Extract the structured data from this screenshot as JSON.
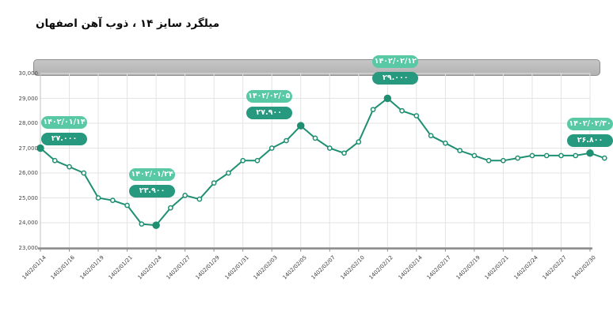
{
  "title": "میلگرد سایز ۱۴ ، ذوب آهن اصفهان",
  "colors": {
    "line": "#1f8f72",
    "marker_fill": "#ffffff",
    "badge_date_bg": "#58c9a4",
    "badge_price_bg": "#27997f",
    "grid": "#e3e3e3",
    "axis": "#8a8a8a",
    "y_axis_line": "#c0c0c0",
    "scrollbar": "#b8b8b8",
    "title_color": "#0b0b0b"
  },
  "chart_data": {
    "type": "line",
    "title": "میلگرد سایز ۱۴ ، ذوب آهن اصفهان",
    "ylim": [
      23000,
      30000
    ],
    "grid": true,
    "y_tick_labels": [
      "30,000",
      "29,000",
      "28,000",
      "27,000",
      "26,000",
      "25,000",
      "24,000",
      "23,000"
    ],
    "y_tick_values": [
      30000,
      29000,
      28000,
      27000,
      26000,
      25000,
      24000,
      23000
    ],
    "x_tick_labels": [
      "1402/01/14",
      "1402/01/16",
      "1402/01/19",
      "1402/01/21",
      "1402/01/24",
      "1402/01/27",
      "1402/01/29",
      "1402/01/31",
      "1402/02/03",
      "1402/02/05",
      "1402/02/07",
      "1402/02/10",
      "1402/02/12",
      "1402/02/14",
      "1402/02/17",
      "1402/02/19",
      "1402/02/21",
      "1402/02/24",
      "1402/02/27",
      "1402/02/30"
    ],
    "tick_every_n_points": 2,
    "values": [
      27000,
      26500,
      26250,
      26000,
      25000,
      24900,
      24700,
      23950,
      23900,
      24600,
      25100,
      24950,
      25600,
      26000,
      26500,
      26500,
      27000,
      27300,
      27900,
      27400,
      27000,
      26800,
      27250,
      28550,
      29000,
      28500,
      28300,
      27500,
      27200,
      26900,
      26700,
      26500,
      26500,
      26600,
      26700,
      26700,
      26700,
      26700,
      26800,
      26600
    ],
    "highlighted_point_indices": [
      0,
      8,
      18,
      24,
      38
    ],
    "annotations": [
      {
        "point_index": 0,
        "date_label": "۱۴۰۲/۰۱/۱۴",
        "price_label": "۲۷.۰۰۰",
        "value": 27000
      },
      {
        "point_index": 8,
        "date_label": "۱۴۰۲/۰۱/۲۴",
        "price_label": "۲۳.۹۰۰",
        "value": 23900
      },
      {
        "point_index": 18,
        "date_label": "۱۴۰۲/۰۲/۰۵",
        "price_label": "۲۷.۹۰۰",
        "value": 27900
      },
      {
        "point_index": 24,
        "date_label": "۱۴۰۲/۰۲/۱۲",
        "price_label": "۲۹.۰۰۰",
        "value": 29000
      },
      {
        "point_index": 38,
        "date_label": "۱۴۰۲/۰۲/۳۰",
        "price_label": "۲۶.۸۰۰",
        "value": 26800
      }
    ],
    "legend": null
  }
}
